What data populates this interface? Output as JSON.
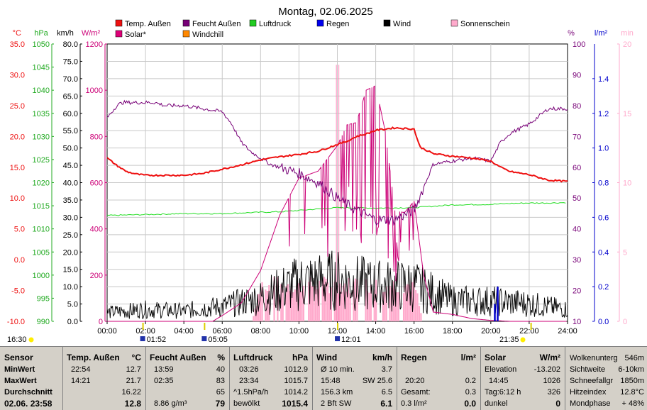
{
  "title": "Montag, 02.06.2025",
  "legend": [
    {
      "name": "Temp. Außen",
      "color": "#ee1111"
    },
    {
      "name": "Feucht Außen",
      "color": "#770077"
    },
    {
      "name": "Luftdruck",
      "color": "#22cc22"
    },
    {
      "name": "Regen",
      "color": "#0000ee"
    },
    {
      "name": "Wind",
      "color": "#000000"
    },
    {
      "name": "Sonnenschein",
      "color": "#ffaacc"
    },
    {
      "name": "Solar*",
      "color": "#dd0077"
    },
    {
      "name": "Windchill",
      "color": "#ff8800"
    }
  ],
  "axes_units": {
    "temp": "°C",
    "pressure": "hPa",
    "wind": "km/h",
    "solar": "W/m²",
    "humidity": "%",
    "rain": "l/m²",
    "sun": "min"
  },
  "colors": {
    "temp": "#ee1111",
    "pressure": "#22aa22",
    "wind": "#000000",
    "solar": "#cc0077",
    "humidity": "#770077",
    "rain": "#0000cc",
    "sun": "#ffaacc"
  },
  "chart_data": {
    "type": "line",
    "x_range": [
      "00:00",
      "24:00"
    ],
    "x_ticks": [
      "00:00",
      "02:00",
      "04:00",
      "06:00",
      "08:00",
      "10:00",
      "12:00",
      "14:00",
      "16:00",
      "18:00",
      "20:00",
      "22:00",
      "24:00"
    ],
    "y_axes": {
      "temp": {
        "label": "°C",
        "range": [
          -10,
          35
        ],
        "ticks": [
          "35.0",
          "30.0",
          "25.0",
          "20.0",
          "15.0",
          "10.0",
          "5.0",
          "0.0",
          "-5.0",
          "-10.0"
        ]
      },
      "pressure": {
        "label": "hPa",
        "range": [
          990,
          1050
        ],
        "ticks": [
          "1050",
          "1045",
          "1040",
          "1035",
          "1030",
          "1025",
          "1020",
          "1015",
          "1010",
          "1005",
          "1000",
          "995",
          "990"
        ]
      },
      "wind": {
        "label": "km/h",
        "range": [
          0,
          80
        ],
        "ticks": [
          "80.0",
          "75.0",
          "70.0",
          "65.0",
          "60.0",
          "55.0",
          "50.0",
          "45.0",
          "40.0",
          "35.0",
          "30.0",
          "25.0",
          "20.0",
          "15.0",
          "10.0",
          "5.0",
          "0.0"
        ]
      },
      "solar": {
        "label": "W/m²",
        "range": [
          0,
          1200
        ],
        "ticks": [
          "1200",
          "1000",
          "800",
          "600",
          "400",
          "200",
          "0"
        ]
      },
      "humidity": {
        "label": "%",
        "range": [
          10,
          100
        ],
        "ticks": [
          "100",
          "90",
          "80",
          "70",
          "60",
          "50",
          "40",
          "30",
          "20",
          "10"
        ]
      },
      "rain": {
        "label": "l/m²",
        "range": [
          0,
          1.6
        ],
        "ticks": [
          "1.4",
          "1.2",
          "1.0",
          "0.8",
          "0.6",
          "0.4",
          "0.2",
          "0.0"
        ]
      },
      "sun": {
        "label": "min",
        "range": [
          0,
          20
        ],
        "ticks": [
          "20",
          "15",
          "10",
          "5",
          "0"
        ]
      }
    },
    "series": [
      {
        "name": "Temp. Außen",
        "axis": "temp",
        "x": [
          0,
          0.5,
          1,
          1.5,
          2,
          3,
          4,
          5,
          6,
          7,
          8,
          9,
          10,
          11,
          12,
          12.5,
          13,
          13.5,
          14,
          15,
          16,
          16.3,
          17,
          18,
          19,
          20,
          20.5,
          21,
          22,
          23,
          24
        ],
        "values": [
          16.5,
          15.3,
          14.3,
          13.9,
          13.7,
          13.7,
          13.7,
          14.0,
          14.7,
          15.4,
          16.2,
          16.7,
          17.1,
          17.6,
          18.7,
          19.2,
          20.0,
          20.4,
          21.0,
          21.4,
          21.2,
          18.3,
          17.2,
          16.8,
          16.5,
          16.0,
          15.0,
          14.3,
          13.8,
          12.9,
          12.7
        ]
      },
      {
        "name": "Feucht Außen",
        "axis": "humidity",
        "x": [
          0,
          0.5,
          0.8,
          1.5,
          2.5,
          3,
          4,
          5,
          6,
          6.5,
          7,
          7.5,
          8,
          8.5,
          9,
          10,
          11,
          12,
          13,
          14,
          15,
          16,
          17,
          18,
          19,
          20,
          20.5,
          21,
          22,
          23,
          24
        ],
        "values": [
          76,
          80,
          81,
          81,
          81,
          80,
          80,
          79,
          78,
          74,
          68,
          65,
          63,
          61,
          60,
          58,
          55,
          50,
          46,
          43,
          43,
          46,
          61,
          62,
          63,
          62,
          68,
          71,
          74,
          79,
          79
        ]
      },
      {
        "name": "Luftdruck",
        "axis": "pressure",
        "x": [
          0,
          2,
          4,
          6,
          8,
          9,
          10,
          12,
          14,
          16,
          17,
          18,
          20,
          21,
          22,
          23,
          24
        ],
        "values": [
          1012.9,
          1013.1,
          1013.3,
          1013.3,
          1013.6,
          1013.7,
          1014.0,
          1014.6,
          1014.5,
          1014.6,
          1014.9,
          1015.2,
          1015.3,
          1015.5,
          1015.6,
          1015.6,
          1015.7
        ]
      },
      {
        "name": "Solar*",
        "axis": "solar",
        "x": [
          0,
          5.5,
          6,
          7,
          8,
          9,
          10,
          11,
          12,
          12.5,
          13,
          13.5,
          14,
          14.5,
          15,
          15.5,
          16,
          16.5,
          17,
          18,
          19,
          20,
          21,
          22,
          24
        ],
        "values": [
          0,
          0,
          25,
          80,
          220,
          460,
          620,
          650,
          760,
          850,
          860,
          1000,
          1020,
          820,
          480,
          470,
          520,
          200,
          40,
          30,
          12,
          4,
          0,
          0,
          0
        ]
      },
      {
        "name": "Wind",
        "axis": "wind",
        "x": [
          0,
          2,
          4,
          5,
          6,
          8,
          10,
          12,
          14,
          16,
          18,
          20,
          22,
          24
        ],
        "values": [
          3,
          4,
          3.5,
          4.5,
          5,
          8,
          13,
          14,
          12,
          12,
          7,
          7,
          6,
          4
        ]
      },
      {
        "name": "Regen",
        "axis": "rain",
        "x": [
          20.2,
          20.35
        ],
        "values": [
          0.1,
          0.2
        ]
      },
      {
        "name": "Sonnenschein",
        "axis": "sun",
        "x": [
          7.5,
          8,
          9,
          10,
          11,
          12,
          13,
          14,
          15,
          16,
          16.4
        ],
        "values": [
          0,
          2.5,
          2.5,
          2.5,
          2.5,
          2.5,
          2.5,
          2.5,
          2.5,
          2.5,
          0
        ]
      }
    ]
  },
  "events": {
    "left_time": "16:30",
    "right_time": "21:35",
    "marks": [
      {
        "t": 1.87,
        "label": "01:52"
      },
      {
        "t": 5.08,
        "label": "05:05"
      },
      {
        "t": 12.02,
        "label": "12:01"
      }
    ]
  },
  "table": {
    "rows_labels": [
      "Sensor",
      "MinWert",
      "MaxWert",
      "Durchschnitt",
      "02.06. 23:58"
    ],
    "temp": {
      "head": "Temp. Außen",
      "unit": "°C",
      "min_t": "22:54",
      "min": "12.7",
      "max_t": "14:21",
      "max": "21.7",
      "avg": "16.22",
      "cur": "12.8"
    },
    "hum": {
      "head": "Feucht Außen",
      "unit": "%",
      "min_t": "13:59",
      "min": "40",
      "max_t": "02:35",
      "max": "83",
      "avg": "65",
      "abs": "8.86 g/m³",
      "cur": "79"
    },
    "press": {
      "head": "Luftdruck",
      "unit": "hPa",
      "min_t": "03:26",
      "min": "1012.9",
      "max_t": "23:34",
      "max": "1015.7",
      "trend": "^1.5hPa/h",
      "avg": "1014.2",
      "cond": "bewölkt",
      "cur": "1015.4"
    },
    "wind": {
      "head": "Wind",
      "unit": "km/h",
      "r1a": "Ø 10 min.",
      "r1b": "3.7",
      "r2a": "15:48",
      "r2b": "SW 25.6",
      "r3a": "156.3 km",
      "r3b": "6.5",
      "r4a": "2 Bft SW",
      "r4b": "6.1"
    },
    "rain": {
      "head": "Regen",
      "unit": "l/m²",
      "r2a": "20:20",
      "r2b": "0.2",
      "r3a": "Gesamt:",
      "r3b": "0.3",
      "r4a": "0.3 l/m²",
      "r4b": "0.0"
    },
    "solar": {
      "head": "Solar",
      "unit": "W/m²",
      "r1a": "Elevation",
      "r1b": "-13.202",
      "r2a": "14:45",
      "r2b": "1026",
      "r3a": "Tag:6:12 h",
      "r3b": "326",
      "r4a": "dunkel",
      "r4b": "0"
    },
    "misc": {
      "r0a": "Wolkenunterg",
      "r0b": "546m",
      "r1a": "Sichtweite",
      "r1b": "6-10km",
      "r2a": "Schneefallgr",
      "r2b": "1850m",
      "r3a": "Hitzeindex",
      "r3b": "12.8°C",
      "r4a": "Mondphase",
      "r4b": "+ 48%"
    }
  }
}
